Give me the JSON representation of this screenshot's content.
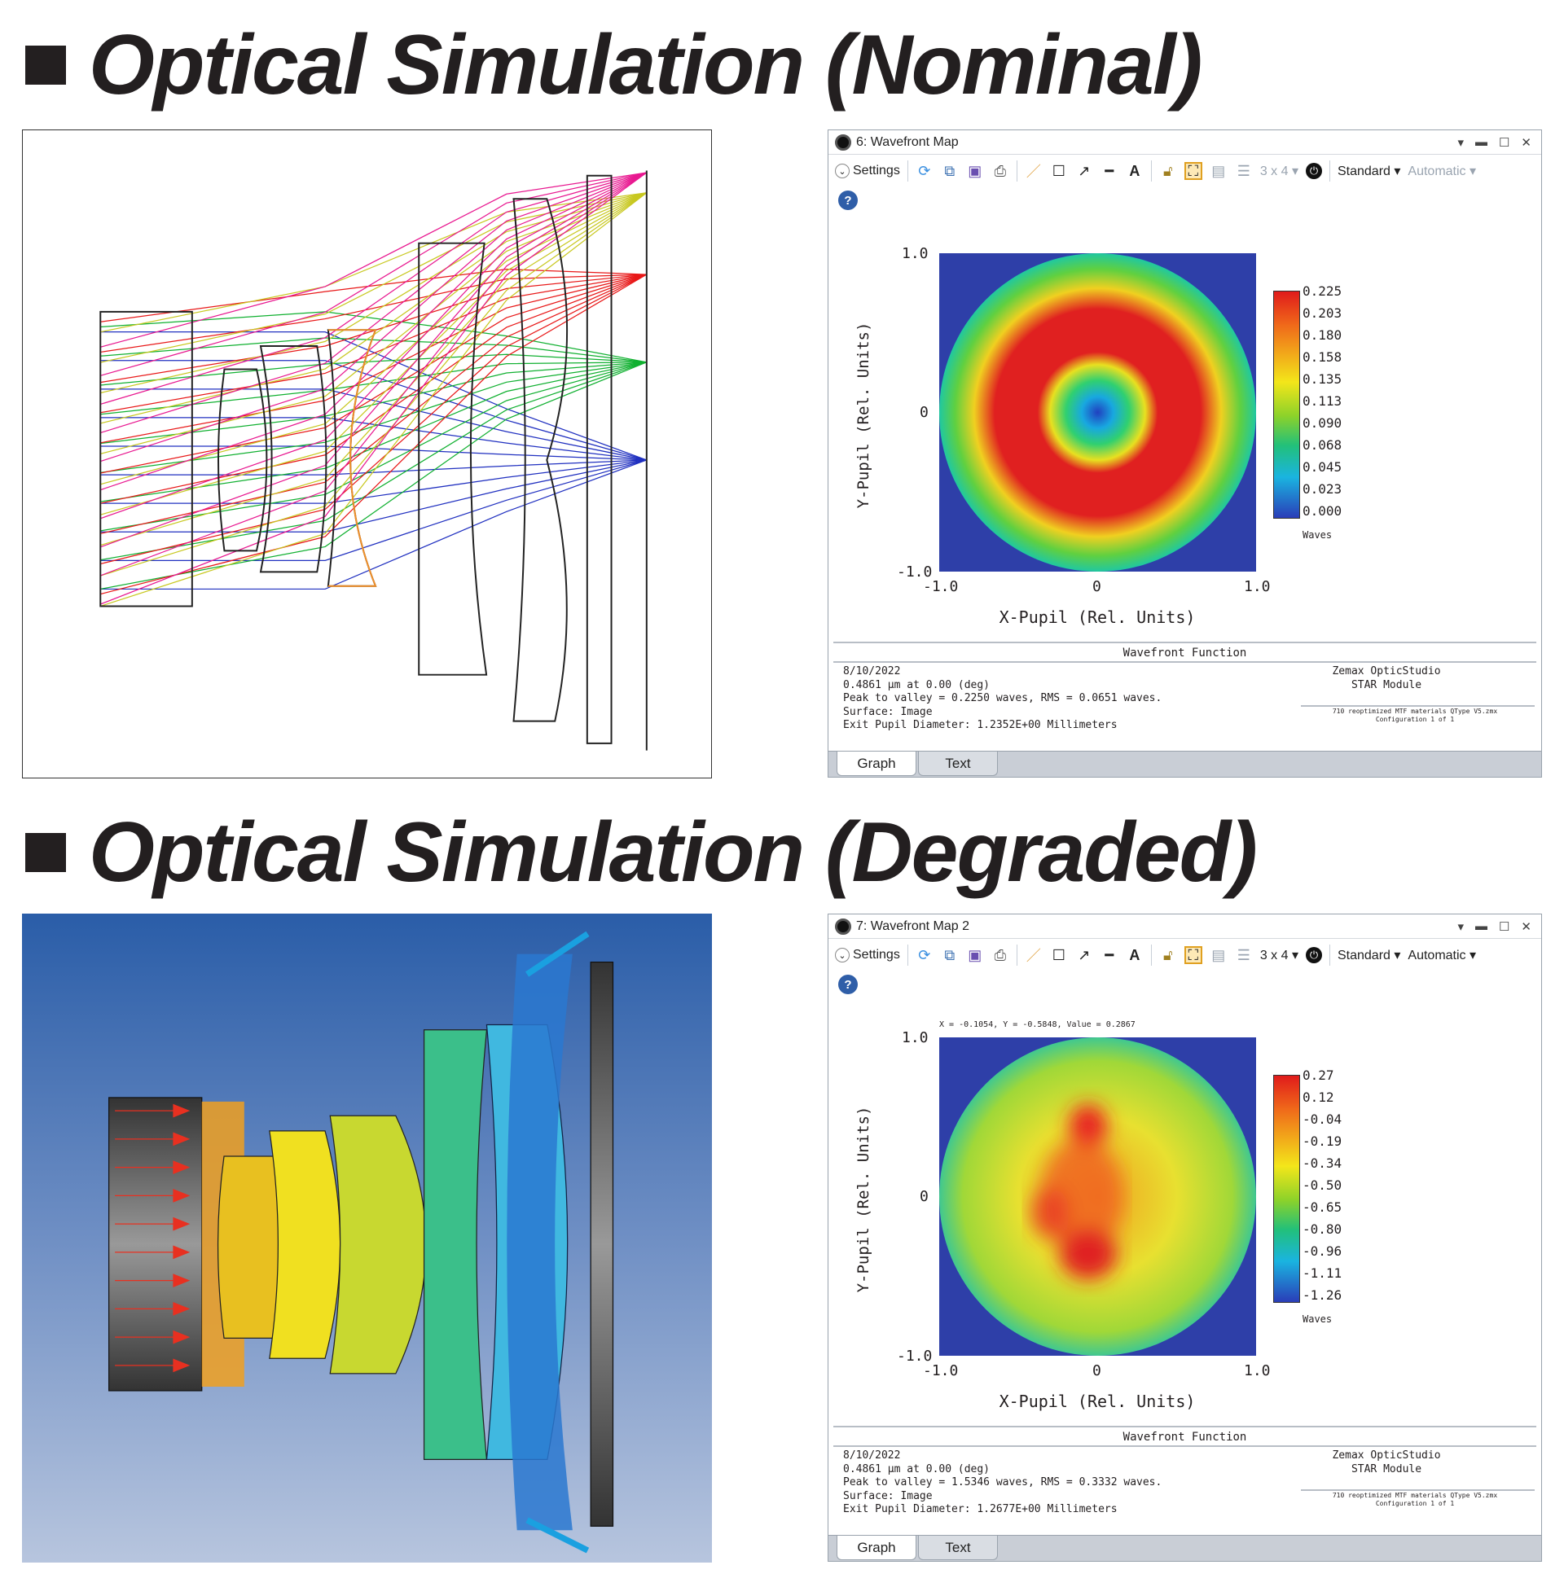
{
  "sections": [
    {
      "title": "Optical Simulation (Nominal)"
    },
    {
      "title": "Optical Simulation (Degraded)"
    }
  ],
  "colors": {
    "ray_blue": "#2030c0",
    "ray_green": "#10b030",
    "ray_red": "#e81818",
    "ray_yellow": "#c8c820",
    "ray_magenta": "#e81890",
    "lens_orange": "#f0902a"
  },
  "windows": [
    {
      "title": "6: Wavefront Map",
      "toolbar": {
        "settings": "Settings",
        "layout": "3 x 4",
        "standard": "Standard",
        "automatic": "Automatic",
        "automatic_enabled": false
      },
      "cursor_readout": "",
      "axes": {
        "y_label": "Y-Pupil (Rel. Units)",
        "x_label": "X-Pupil (Rel. Units)",
        "y_ticks": [
          "1.0",
          "0",
          "-1.0"
        ],
        "x_ticks": [
          "-1.0",
          "0",
          "1.0"
        ]
      },
      "colorbar": {
        "labels": [
          "0.225",
          "0.203",
          "0.180",
          "0.158",
          "0.135",
          "0.113",
          "0.090",
          "0.068",
          "0.045",
          "0.023",
          "0.000"
        ],
        "unit": "Waves"
      },
      "footer": {
        "heading": "Wavefront Function",
        "lines": [
          "8/10/2022",
          "0.4861 µm at 0.00 (deg)",
          "Peak to valley = 0.2250 waves, RMS = 0.0651 waves.",
          "Surface: Image",
          "Exit Pupil Diameter: 1.2352E+00 Millimeters"
        ],
        "product": "Zemax OpticStudio",
        "module": "STAR Module",
        "file": "710 reoptimized MTF materials QType V5.zmx",
        "config": "Configuration 1 of 1"
      },
      "tabs": [
        "Graph",
        "Text"
      ]
    },
    {
      "title": "7: Wavefront Map 2",
      "toolbar": {
        "settings": "Settings",
        "layout": "3 x 4",
        "standard": "Standard",
        "automatic": "Automatic",
        "automatic_enabled": true
      },
      "cursor_readout": "X = -0.1054, Y = -0.5848, Value = 0.2867",
      "axes": {
        "y_label": "Y-Pupil (Rel. Units)",
        "x_label": "X-Pupil (Rel. Units)",
        "y_ticks": [
          "1.0",
          "0",
          "-1.0"
        ],
        "x_ticks": [
          "-1.0",
          "0",
          "1.0"
        ]
      },
      "colorbar": {
        "labels": [
          "0.27",
          "0.12",
          "-0.04",
          "-0.19",
          "-0.34",
          "-0.50",
          "-0.65",
          "-0.80",
          "-0.96",
          "-1.11",
          "-1.26"
        ],
        "unit": "Waves"
      },
      "footer": {
        "heading": "Wavefront Function",
        "lines": [
          "8/10/2022",
          "0.4861 µm at 0.00 (deg)",
          "Peak to valley = 1.5346 waves, RMS = 0.3332 waves.",
          "Surface: Image",
          "Exit Pupil Diameter: 1.2677E+00 Millimeters"
        ],
        "product": "Zemax OpticStudio",
        "module": "STAR Module",
        "file": "710 reoptimized MTF materials QType V5.zmx",
        "config": "Configuration 1 of 1"
      },
      "tabs": [
        "Graph",
        "Text"
      ]
    }
  ]
}
